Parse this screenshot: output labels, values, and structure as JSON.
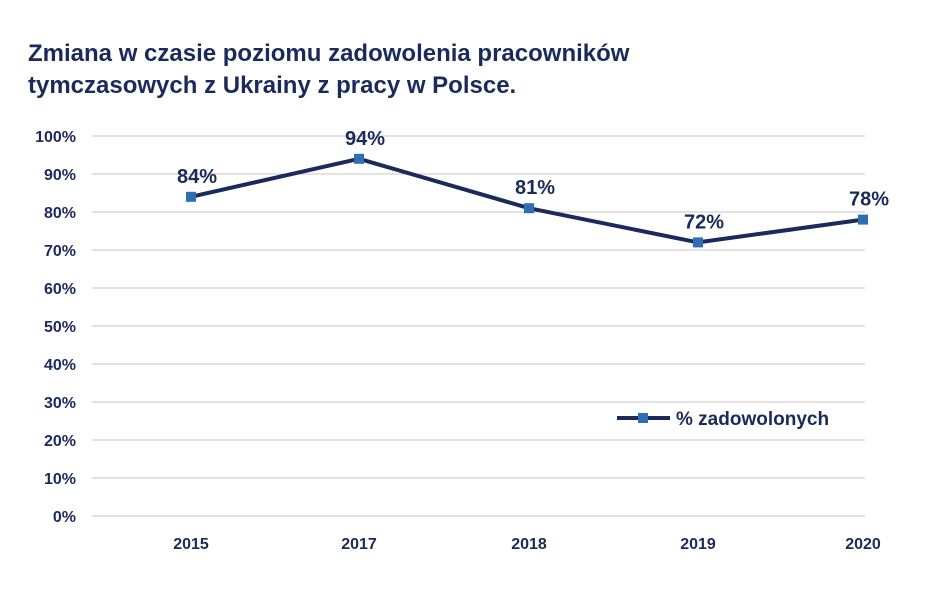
{
  "title": "Zmiana w czasie poziomu zadowolenia pracowników tymczasowych z Ukrainy z pracy w Polsce.",
  "colors": {
    "line": "#1b2a5c",
    "marker": "#2f6db5",
    "text": "#1b2a5c",
    "grid": "#c4c4c4"
  },
  "chart_data": {
    "type": "line",
    "title": "Zmiana w czasie poziomu zadowolenia pracowników tymczasowych z Ukrainy z pracy w Polsce.",
    "categories": [
      "2015",
      "2017",
      "2018",
      "2019",
      "2020"
    ],
    "series": [
      {
        "name": "% zadowolonych",
        "values": [
          84,
          94,
          81,
          72,
          78
        ],
        "labels": [
          "84%",
          "94%",
          "81%",
          "72%",
          "78%"
        ]
      }
    ],
    "ylim": [
      0,
      100
    ],
    "yticks": [
      "0%",
      "10%",
      "20%",
      "30%",
      "40%",
      "50%",
      "60%",
      "70%",
      "80%",
      "90%",
      "100%"
    ],
    "xlabel": "",
    "ylabel": "",
    "grid": true,
    "legend_position": "right"
  }
}
